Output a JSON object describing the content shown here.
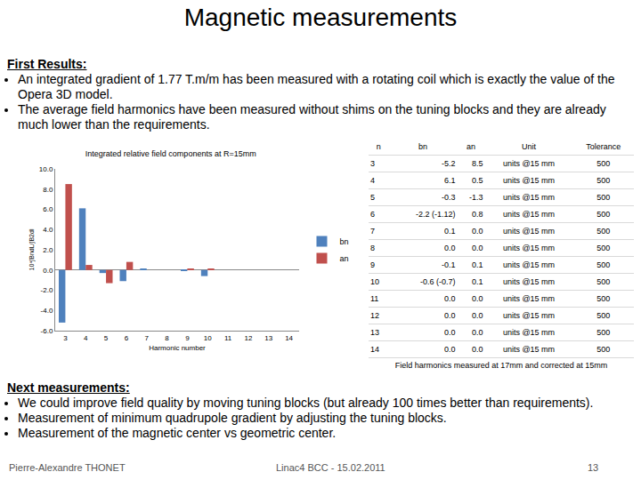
{
  "title": "Magnetic measurements",
  "first_results": {
    "heading": "First Results:",
    "items": [
      "An integrated gradient of 1.77 T.m/m has been measured with a rotating  coil which is exactly the value of the Opera 3D model.",
      "The average field harmonics have been measured without shims on the tuning blocks and they are already much lower than the requirements."
    ]
  },
  "chart_data": {
    "type": "bar",
    "title": "Integrated relative field components at R=15mm",
    "x_label": "Harmonic number",
    "y_label": "10⁴∫BndL/∫B2dl",
    "categories": [
      "3",
      "4",
      "5",
      "6",
      "7",
      "8",
      "9",
      "10",
      "11",
      "12",
      "13",
      "14"
    ],
    "series": [
      {
        "name": "bn",
        "color": "#4f81bd",
        "values": [
          -5.2,
          6.1,
          -0.3,
          -1.1,
          0.1,
          0.0,
          -0.1,
          -0.6,
          0.0,
          0.0,
          0.0,
          0.0
        ]
      },
      {
        "name": "an",
        "color": "#c0504d",
        "values": [
          8.5,
          0.5,
          -1.3,
          0.8,
          0.0,
          0.0,
          0.1,
          0.1,
          0.0,
          0.0,
          0.0,
          0.0
        ]
      }
    ],
    "ylim": [
      -6,
      10
    ],
    "yticks": [
      {
        "value": -6,
        "label": "-6.0"
      },
      {
        "value": -4,
        "label": "-4.0"
      },
      {
        "value": -2,
        "label": "-2.0"
      },
      {
        "value": 0,
        "label": "0.0"
      },
      {
        "value": 2,
        "label": "2.0"
      },
      {
        "value": 4,
        "label": "4.0"
      },
      {
        "value": 6,
        "label": "6.0"
      },
      {
        "value": 8,
        "label": "8.0"
      },
      {
        "value": 10,
        "label": "10.0"
      }
    ],
    "grid": false,
    "legend": "right"
  },
  "table": {
    "header": [
      "n",
      "bn",
      "an",
      "Unit",
      "Tolerance"
    ],
    "rows": [
      [
        "3",
        "-5.2",
        "8.5",
        "units @15 mm",
        "500"
      ],
      [
        "4",
        "6.1",
        "0.5",
        "units @15 mm",
        "500"
      ],
      [
        "5",
        "-0.3",
        "-1.3",
        "units @15 mm",
        "500"
      ],
      [
        "6",
        "-2.2 (-1.12)",
        "0.8",
        "units @15 mm",
        "500"
      ],
      [
        "7",
        "0.1",
        "0.0",
        "units @15 mm",
        "500"
      ],
      [
        "8",
        "0.0",
        "0.0",
        "units @15 mm",
        "500"
      ],
      [
        "9",
        "-0.1",
        "0.1",
        "units @15 mm",
        "500"
      ],
      [
        "10",
        "-0.6 (-0.7)",
        "0.1",
        "units @15 mm",
        "500"
      ],
      [
        "11",
        "0.0",
        "0.0",
        "units @15 mm",
        "500"
      ],
      [
        "12",
        "0.0",
        "0.0",
        "units @15 mm",
        "500"
      ],
      [
        "13",
        "0.0",
        "0.0",
        "units @15 mm",
        "500"
      ],
      [
        "14",
        "0.0",
        "0.0",
        "units @15 mm",
        "500"
      ]
    ],
    "caption": "Field harmonics measured at 17mm and corrected at 15mm"
  },
  "next_measurements": {
    "heading": "Next measurements:",
    "items": [
      "We could improve field quality by moving tuning blocks (but already 100 times better than requirements).",
      "Measurement of minimum quadrupole gradient by adjusting the tuning blocks.",
      "Measurement of the magnetic center vs geometric center."
    ]
  },
  "footer": {
    "author": "Pierre-Alexandre THONET",
    "event": "Linac4 BCC - 15.02.2011",
    "page": "13"
  }
}
